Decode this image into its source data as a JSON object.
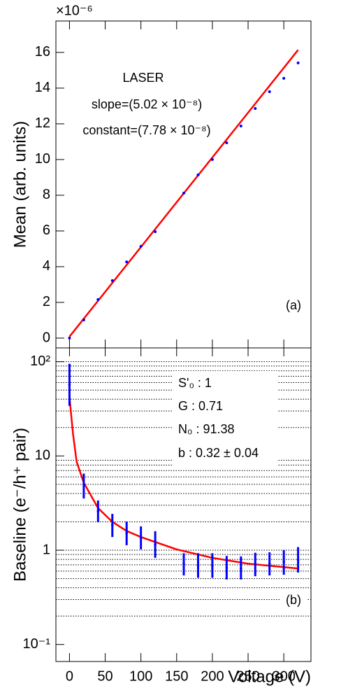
{
  "chart_data": [
    {
      "type": "scatter",
      "ylabel": "Mean (arb. units)",
      "multiplier": "×10⁻⁶",
      "annotations": [
        "LASER",
        "slope=(5.02 × 10⁻⁸)",
        "constant=(7.78 × 10⁻⁸)",
        "(a)"
      ],
      "x": [
        0,
        20,
        40,
        60,
        80,
        100,
        120,
        160,
        180,
        200,
        220,
        240,
        260,
        280,
        300,
        320
      ],
      "values": [
        0.0,
        1.02,
        2.16,
        3.22,
        4.27,
        5.14,
        5.96,
        8.12,
        9.14,
        10.0,
        10.94,
        11.88,
        12.86,
        13.8,
        14.55,
        15.41
      ],
      "color": "#0000ff",
      "fit": {
        "x": [
          0,
          320
        ],
        "y": [
          0.08,
          16.14
        ],
        "color": "#ff0000"
      },
      "xlim": [
        -19,
        338
      ],
      "xticks": [
        0,
        50,
        100,
        150,
        200,
        250,
        300
      ],
      "ylim": [
        -0.55,
        17.76
      ],
      "yticks": [
        0,
        2,
        4,
        6,
        8,
        10,
        12,
        14,
        16
      ]
    },
    {
      "type": "errorbar",
      "ylabel": "Baseline (e⁻/h⁺ pair)",
      "xlabel": "Voltage (V)",
      "log_y": true,
      "annotations": [
        "S'₀ :  1",
        "G : 0.71",
        "N₀ : 91.38",
        "b : 0.32 ± 0.04",
        "(b)"
      ],
      "x": [
        0,
        20,
        40,
        60,
        80,
        100,
        120,
        160,
        180,
        200,
        220,
        240,
        260,
        280,
        300,
        320
      ],
      "values": [
        57,
        4.97,
        2.6,
        1.85,
        1.51,
        1.36,
        1.15,
        0.71,
        0.69,
        0.69,
        0.65,
        0.64,
        0.71,
        0.72,
        0.75,
        0.79
      ],
      "error_low": [
        34,
        3.54,
        1.98,
        1.38,
        1.13,
        1.02,
        0.83,
        0.54,
        0.51,
        0.51,
        0.49,
        0.49,
        0.53,
        0.54,
        0.55,
        0.58
      ],
      "error_high": [
        95,
        6.5,
        3.37,
        2.43,
        2.01,
        1.79,
        1.59,
        0.93,
        0.93,
        0.93,
        0.87,
        0.86,
        0.94,
        0.95,
        1.0,
        1.08
      ],
      "color": "#0000ff",
      "fit": {
        "x": [
          0,
          5,
          10,
          20,
          40,
          60,
          80,
          100,
          150,
          200,
          250,
          320
        ],
        "y": [
          42,
          17,
          8.7,
          5.2,
          2.8,
          2.0,
          1.6,
          1.38,
          1.02,
          0.83,
          0.72,
          0.64
        ],
        "color": "#ff0000"
      },
      "xlim": [
        -19,
        338
      ],
      "xticks": [
        0,
        50,
        100,
        150,
        200,
        250,
        300
      ],
      "ylim": [
        0.066,
        140
      ],
      "yticks": [
        {
          "value": 0.1,
          "label": "10⁻¹"
        },
        1,
        10,
        {
          "value": 100,
          "label": "10²"
        }
      ],
      "grid_values": [
        0.2,
        0.3,
        0.4,
        0.5,
        0.6,
        0.7,
        0.8,
        0.9,
        1,
        2,
        3,
        4,
        5,
        6,
        7,
        8,
        9,
        20,
        30,
        40,
        50,
        60,
        70,
        80,
        90,
        100
      ]
    }
  ]
}
